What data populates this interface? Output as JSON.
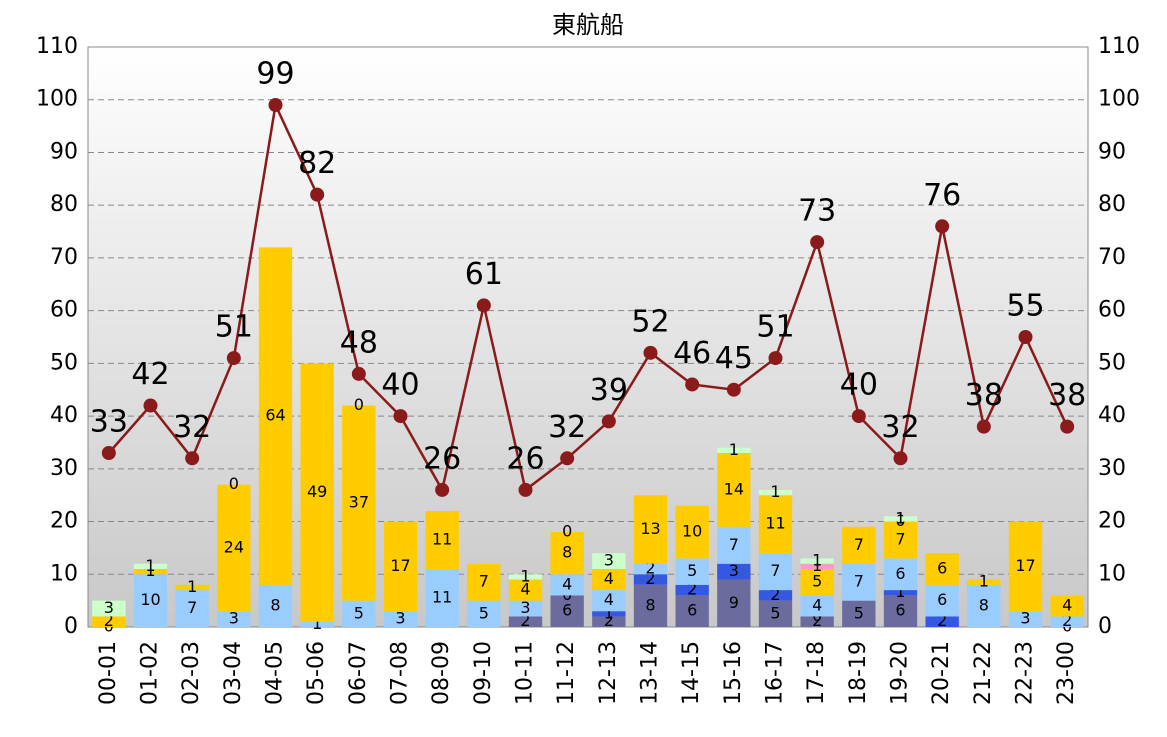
{
  "chart_data": {
    "type": "bar",
    "title": "東航船",
    "categories": [
      "00-01",
      "01-02",
      "02-03",
      "03-04",
      "04-05",
      "05-06",
      "06-07",
      "07-08",
      "08-09",
      "09-10",
      "10-11",
      "11-12",
      "12-13",
      "13-14",
      "14-15",
      "15-16",
      "16-17",
      "17-18",
      "18-19",
      "19-20",
      "20-21",
      "21-22",
      "22-23",
      "23-00"
    ],
    "series": [
      {
        "type": "bar",
        "color": "#6b6b9e",
        "values": [
          0,
          null,
          null,
          null,
          null,
          null,
          null,
          null,
          null,
          null,
          2,
          6,
          2,
          8,
          6,
          9,
          5,
          2,
          5,
          6,
          null,
          null,
          null,
          0
        ]
      },
      {
        "type": "bar",
        "color": "#3558e0",
        "values": [
          null,
          null,
          null,
          null,
          null,
          null,
          null,
          null,
          null,
          null,
          null,
          0,
          1,
          2,
          2,
          3,
          2,
          0,
          null,
          1,
          2,
          null,
          null,
          null
        ]
      },
      {
        "type": "bar",
        "color": "#99ccff",
        "values": [
          null,
          10,
          7,
          3,
          8,
          1,
          5,
          3,
          11,
          5,
          3,
          4,
          4,
          2,
          5,
          7,
          7,
          4,
          7,
          6,
          6,
          8,
          3,
          2
        ]
      },
      {
        "type": "bar",
        "color": "#ffcc00",
        "values": [
          2,
          1,
          1,
          24,
          64,
          49,
          37,
          17,
          11,
          7,
          4,
          8,
          4,
          13,
          10,
          14,
          11,
          5,
          7,
          7,
          6,
          1,
          17,
          4
        ]
      },
      {
        "type": "bar",
        "color": "#ff99cc",
        "values": [
          null,
          null,
          null,
          null,
          null,
          null,
          null,
          null,
          null,
          null,
          null,
          null,
          null,
          null,
          null,
          null,
          null,
          1,
          null,
          0,
          null,
          null,
          null,
          null
        ]
      },
      {
        "type": "bar",
        "color": "#ccffcc",
        "values": [
          3,
          1,
          null,
          0,
          null,
          null,
          0,
          null,
          null,
          null,
          1,
          0,
          3,
          null,
          null,
          1,
          1,
          1,
          null,
          1,
          null,
          null,
          null,
          null
        ]
      },
      {
        "type": "line",
        "axis": "y2",
        "color": "#8b1a1a",
        "values": [
          33,
          42,
          32,
          51,
          99,
          82,
          48,
          40,
          26,
          61,
          26,
          32,
          39,
          52,
          46,
          45,
          51,
          73,
          40,
          32,
          76,
          38,
          55,
          38
        ]
      }
    ],
    "ylim": [
      0,
      110
    ],
    "yticks": [
      0,
      10,
      20,
      30,
      40,
      50,
      60,
      70,
      80,
      90,
      100,
      110
    ],
    "y2lim": [
      0,
      110
    ],
    "y2ticks": [
      0,
      10,
      20,
      30,
      40,
      50,
      60,
      70,
      80,
      90,
      100,
      110
    ],
    "grid": true
  }
}
